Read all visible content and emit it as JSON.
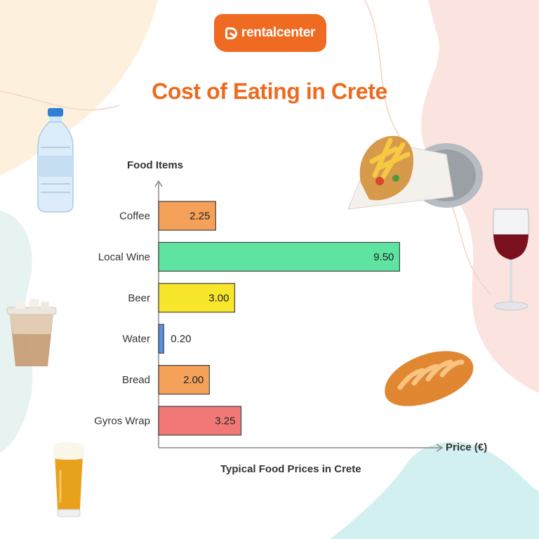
{
  "brand": {
    "name": "rentalcenter",
    "color": "#ef6b21"
  },
  "chart_data": {
    "type": "bar",
    "orientation": "horizontal",
    "title": "Cost of Eating in Crete",
    "subtitle": "Typical Food Prices in Crete",
    "ylabel": "Food Items",
    "xlabel": "Price (€)",
    "categories": [
      "Coffee",
      "Local Wine",
      "Beer",
      "Water",
      "Bread",
      "Gyros Wrap"
    ],
    "values": [
      2.25,
      9.5,
      3.0,
      0.2,
      2.0,
      3.25
    ],
    "value_labels": [
      "2.25",
      "9.50",
      "3.00",
      "0.20",
      "2.00",
      "3.25"
    ],
    "colors": [
      "#f5a15a",
      "#5ee3a0",
      "#f7e62a",
      "#5b8fe0",
      "#f5a15a",
      "#f27878"
    ],
    "xlim": [
      0,
      10.9
    ],
    "grid": false
  },
  "decorations": [
    "water-bottle",
    "gyros-wrap",
    "red-wine-glass",
    "iced-coffee",
    "bread-loaf",
    "beer-glass"
  ]
}
